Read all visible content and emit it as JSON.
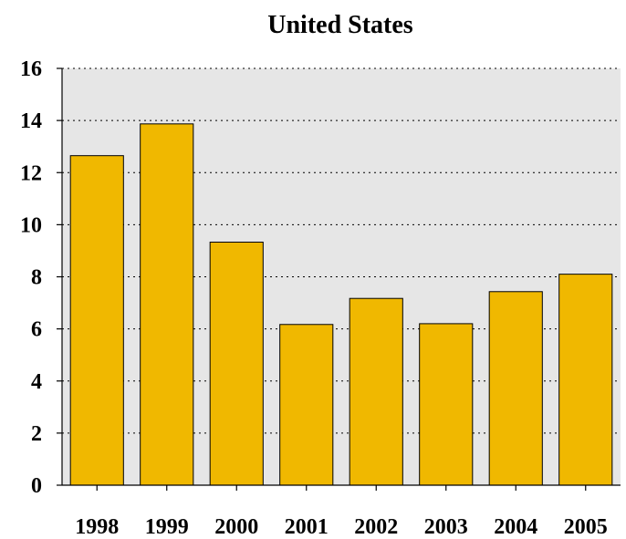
{
  "chart_data": {
    "type": "bar",
    "title": "United States",
    "xlabel": "",
    "ylabel": "",
    "categories": [
      "1998",
      "1999",
      "2000",
      "2001",
      "2002",
      "2003",
      "2004",
      "2005"
    ],
    "values": [
      12.65,
      13.87,
      9.33,
      6.17,
      7.17,
      6.2,
      7.43,
      8.1
    ],
    "ylim": [
      0,
      16
    ],
    "yticks": [
      0,
      2,
      4,
      6,
      8,
      10,
      12,
      14,
      16
    ],
    "grid": true,
    "grid_style": "dotted",
    "legend": "none",
    "colors": {
      "bar_fill": "#f0b800",
      "bar_stroke": "#000000",
      "plot_background": "#e6e6e6",
      "page_background": "#ffffff"
    }
  }
}
